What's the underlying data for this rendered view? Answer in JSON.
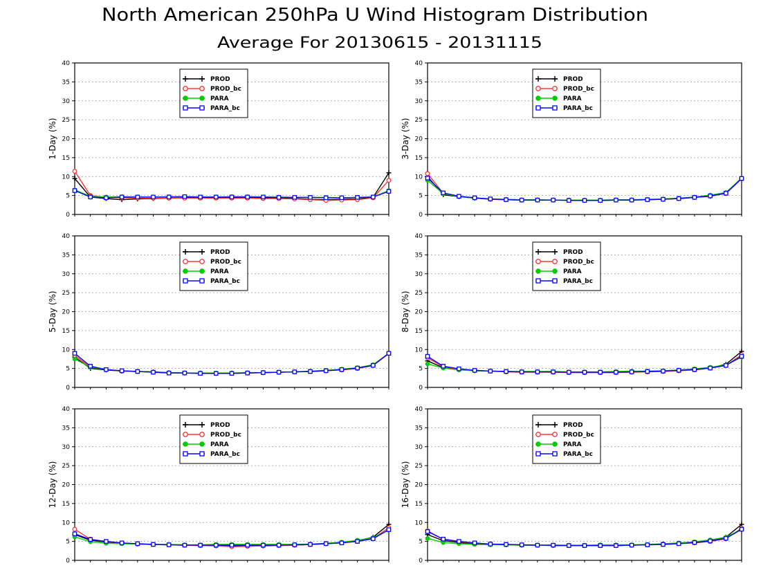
{
  "title": "North American 250hPa U Wind Histogram Distribution",
  "subtitle": "Average For 20130615 - 20131115",
  "series_styles": [
    {
      "name": "PROD",
      "color": "#000000",
      "marker": "plus"
    },
    {
      "name": "PROD_bc",
      "color": "#ff3333",
      "marker": "open-circle"
    },
    {
      "name": "PARA",
      "color": "#00cc00",
      "marker": "filled-circle"
    },
    {
      "name": "PARA_bc",
      "color": "#0000ff",
      "marker": "open-square"
    }
  ],
  "chart_data": [
    {
      "type": "line",
      "ylabel": "1-Day (%)",
      "ylim": [
        0,
        40
      ],
      "yticks": [
        0,
        5,
        10,
        15,
        20,
        25,
        30,
        35,
        40
      ],
      "grid": "y",
      "legend": "top-center",
      "x": [
        1,
        2,
        3,
        4,
        5,
        6,
        7,
        8,
        9,
        10,
        11,
        12,
        13,
        14,
        15,
        16,
        17,
        18,
        19,
        20,
        21
      ],
      "series": [
        {
          "name": "PROD",
          "values": [
            9.5,
            4.6,
            4.2,
            3.9,
            4.1,
            4.2,
            4.3,
            4.4,
            4.5,
            4.4,
            4.5,
            4.5,
            4.4,
            4.3,
            4.2,
            4.0,
            3.9,
            4.0,
            4.1,
            4.5,
            11.0
          ]
        },
        {
          "name": "PROD_bc",
          "values": [
            11.4,
            5.0,
            4.5,
            4.4,
            4.3,
            4.3,
            4.3,
            4.3,
            4.3,
            4.3,
            4.3,
            4.3,
            4.2,
            4.2,
            4.1,
            3.9,
            3.7,
            3.8,
            3.9,
            4.4,
            9.0
          ]
        },
        {
          "name": "PARA",
          "values": [
            6.5,
            4.8,
            4.6,
            4.7,
            4.6,
            4.6,
            4.7,
            4.7,
            4.6,
            4.6,
            4.7,
            4.7,
            4.6,
            4.6,
            4.5,
            4.5,
            4.5,
            4.4,
            4.5,
            4.6,
            6.3
          ]
        },
        {
          "name": "PARA_bc",
          "values": [
            6.3,
            4.6,
            4.4,
            4.6,
            4.6,
            4.6,
            4.6,
            4.7,
            4.6,
            4.6,
            4.6,
            4.6,
            4.6,
            4.5,
            4.5,
            4.5,
            4.4,
            4.4,
            4.5,
            4.6,
            6.1
          ]
        }
      ]
    },
    {
      "type": "line",
      "ylabel": "3-Day (%)",
      "ylim": [
        0,
        40
      ],
      "yticks": [
        0,
        5,
        10,
        15,
        20,
        25,
        30,
        35,
        40
      ],
      "grid": "y",
      "legend": "top-center",
      "x": [
        1,
        2,
        3,
        4,
        5,
        6,
        7,
        8,
        9,
        10,
        11,
        12,
        13,
        14,
        15,
        16,
        17,
        18,
        19,
        20,
        21
      ],
      "series": [
        {
          "name": "PROD",
          "values": [
            10.0,
            5.2,
            4.7,
            4.3,
            4.0,
            3.9,
            3.8,
            3.8,
            3.8,
            3.8,
            3.7,
            3.7,
            3.8,
            3.8,
            3.9,
            4.0,
            4.2,
            4.5,
            4.8,
            5.6,
            9.5
          ]
        },
        {
          "name": "PROD_bc",
          "values": [
            10.8,
            5.6,
            4.8,
            4.4,
            4.0,
            3.9,
            3.8,
            3.8,
            3.8,
            3.8,
            3.7,
            3.7,
            3.8,
            3.8,
            3.9,
            4.0,
            4.2,
            4.5,
            4.9,
            5.5,
            9.4
          ]
        },
        {
          "name": "PARA",
          "values": [
            9.0,
            5.5,
            4.7,
            4.3,
            4.1,
            4.0,
            3.9,
            3.9,
            3.8,
            3.8,
            3.8,
            3.8,
            3.9,
            3.9,
            4.0,
            4.1,
            4.3,
            4.6,
            5.1,
            5.8,
            9.6
          ]
        },
        {
          "name": "PARA_bc",
          "values": [
            9.6,
            5.7,
            4.8,
            4.4,
            4.1,
            3.9,
            3.8,
            3.8,
            3.8,
            3.7,
            3.7,
            3.7,
            3.8,
            3.8,
            3.9,
            4.0,
            4.2,
            4.5,
            4.9,
            5.6,
            9.5
          ]
        }
      ]
    },
    {
      "type": "line",
      "ylabel": "5-Day (%)",
      "ylim": [
        0,
        40
      ],
      "yticks": [
        0,
        5,
        10,
        15,
        20,
        25,
        30,
        35,
        40
      ],
      "grid": "y",
      "legend": "top-center",
      "x": [
        1,
        2,
        3,
        4,
        5,
        6,
        7,
        8,
        9,
        10,
        11,
        12,
        13,
        14,
        15,
        16,
        17,
        18,
        19,
        20,
        21
      ],
      "series": [
        {
          "name": "PROD",
          "values": [
            8.0,
            5.0,
            4.6,
            4.3,
            4.2,
            4.1,
            3.9,
            3.8,
            3.8,
            3.7,
            3.8,
            3.8,
            3.9,
            4.0,
            4.1,
            4.2,
            4.4,
            4.7,
            5.0,
            5.8,
            9.0
          ]
        },
        {
          "name": "PROD_bc",
          "values": [
            8.5,
            5.3,
            4.7,
            4.3,
            4.2,
            4.0,
            3.8,
            3.8,
            3.7,
            3.7,
            3.7,
            3.8,
            3.9,
            4.0,
            4.1,
            4.2,
            4.4,
            4.6,
            5.0,
            5.8,
            8.9
          ]
        },
        {
          "name": "PARA",
          "values": [
            7.5,
            5.3,
            4.7,
            4.4,
            4.2,
            4.0,
            3.9,
            3.8,
            3.8,
            3.8,
            3.8,
            3.9,
            3.9,
            4.0,
            4.1,
            4.3,
            4.5,
            4.8,
            5.2,
            6.0,
            9.0
          ]
        },
        {
          "name": "PARA_bc",
          "values": [
            9.0,
            5.6,
            4.7,
            4.4,
            4.2,
            4.0,
            3.8,
            3.8,
            3.7,
            3.7,
            3.7,
            3.8,
            3.9,
            4.0,
            4.1,
            4.2,
            4.4,
            4.7,
            5.1,
            5.8,
            9.0
          ]
        }
      ]
    },
    {
      "type": "line",
      "ylabel": "8-Day (%)",
      "ylim": [
        0,
        40
      ],
      "yticks": [
        0,
        5,
        10,
        15,
        20,
        25,
        30,
        35,
        40
      ],
      "grid": "y",
      "legend": "top-center",
      "x": [
        1,
        2,
        3,
        4,
        5,
        6,
        7,
        8,
        9,
        10,
        11,
        12,
        13,
        14,
        15,
        16,
        17,
        18,
        19,
        20,
        21
      ],
      "series": [
        {
          "name": "PROD",
          "values": [
            7.0,
            5.2,
            4.7,
            4.4,
            4.3,
            4.2,
            4.1,
            4.1,
            4.0,
            4.0,
            4.0,
            4.0,
            4.0,
            4.1,
            4.2,
            4.3,
            4.4,
            4.7,
            5.1,
            6.1,
            9.5
          ]
        },
        {
          "name": "PROD_bc",
          "values": [
            7.8,
            5.4,
            4.8,
            4.5,
            4.3,
            4.1,
            4.0,
            4.0,
            4.0,
            3.9,
            3.9,
            3.9,
            3.9,
            4.0,
            4.1,
            4.2,
            4.4,
            4.6,
            5.1,
            5.8,
            8.6
          ]
        },
        {
          "name": "PARA",
          "values": [
            6.2,
            5.1,
            4.6,
            4.4,
            4.3,
            4.2,
            4.2,
            4.2,
            4.2,
            4.1,
            4.1,
            4.1,
            4.2,
            4.3,
            4.3,
            4.4,
            4.6,
            4.9,
            5.3,
            5.9,
            8.0
          ]
        },
        {
          "name": "PARA_bc",
          "values": [
            8.2,
            5.6,
            4.9,
            4.5,
            4.3,
            4.2,
            4.1,
            4.1,
            4.1,
            4.0,
            4.0,
            4.0,
            4.0,
            4.1,
            4.2,
            4.3,
            4.5,
            4.7,
            5.1,
            5.8,
            8.2
          ]
        }
      ]
    },
    {
      "type": "line",
      "ylabel": "12-Day (%)",
      "ylim": [
        0,
        40
      ],
      "yticks": [
        0,
        5,
        10,
        15,
        20,
        25,
        30,
        35,
        40
      ],
      "grid": "y",
      "legend": "top-center",
      "x": [
        1,
        2,
        3,
        4,
        5,
        6,
        7,
        8,
        9,
        10,
        11,
        12,
        13,
        14,
        15,
        16,
        17,
        18,
        19,
        20,
        21
      ],
      "series": [
        {
          "name": "PROD",
          "values": [
            6.8,
            5.3,
            4.8,
            4.5,
            4.3,
            4.2,
            4.1,
            4.0,
            3.9,
            3.9,
            3.9,
            3.8,
            3.8,
            3.9,
            4.0,
            4.2,
            4.4,
            4.7,
            5.2,
            6.1,
            9.5
          ]
        },
        {
          "name": "PROD_bc",
          "values": [
            8.2,
            5.6,
            4.9,
            4.6,
            4.3,
            4.2,
            4.1,
            4.0,
            3.9,
            3.8,
            3.6,
            3.7,
            3.8,
            3.9,
            4.0,
            4.2,
            4.4,
            4.6,
            5.0,
            5.8,
            8.6
          ]
        },
        {
          "name": "PARA",
          "values": [
            6.2,
            4.9,
            4.5,
            4.4,
            4.3,
            4.2,
            4.2,
            4.1,
            4.1,
            4.2,
            4.2,
            4.2,
            4.2,
            4.2,
            4.2,
            4.3,
            4.5,
            4.8,
            5.3,
            6.0,
            8.0
          ]
        },
        {
          "name": "PARA_bc",
          "values": [
            7.0,
            5.5,
            5.0,
            4.6,
            4.4,
            4.2,
            4.1,
            4.0,
            4.0,
            4.0,
            4.0,
            4.0,
            4.0,
            4.0,
            4.1,
            4.2,
            4.4,
            4.6,
            5.0,
            5.7,
            8.1
          ]
        }
      ]
    },
    {
      "type": "line",
      "ylabel": "16-Day (%)",
      "ylim": [
        0,
        40
      ],
      "yticks": [
        0,
        5,
        10,
        15,
        20,
        25,
        30,
        35,
        40
      ],
      "grid": "y",
      "legend": "top-center",
      "x": [
        1,
        2,
        3,
        4,
        5,
        6,
        7,
        8,
        9,
        10,
        11,
        12,
        13,
        14,
        15,
        16,
        17,
        18,
        19,
        20,
        21
      ],
      "series": [
        {
          "name": "PROD",
          "values": [
            6.8,
            5.2,
            4.7,
            4.4,
            4.2,
            4.1,
            4.0,
            4.0,
            3.9,
            3.9,
            3.9,
            3.9,
            3.9,
            4.0,
            4.1,
            4.3,
            4.5,
            4.8,
            5.3,
            6.1,
            9.5
          ]
        },
        {
          "name": "PROD_bc",
          "values": [
            7.8,
            5.5,
            4.9,
            4.5,
            4.3,
            4.2,
            4.1,
            4.0,
            4.0,
            3.9,
            3.9,
            3.9,
            3.9,
            4.0,
            4.1,
            4.2,
            4.4,
            4.6,
            5.0,
            5.7,
            8.5
          ]
        },
        {
          "name": "PARA",
          "values": [
            5.8,
            4.7,
            4.4,
            4.2,
            4.1,
            4.1,
            4.0,
            4.0,
            4.0,
            4.0,
            4.0,
            4.1,
            4.1,
            4.1,
            4.2,
            4.4,
            4.6,
            4.9,
            5.4,
            6.1,
            8.2
          ]
        },
        {
          "name": "PARA_bc",
          "values": [
            7.6,
            5.6,
            5.0,
            4.6,
            4.3,
            4.2,
            4.1,
            4.0,
            4.0,
            3.9,
            3.9,
            3.9,
            3.9,
            4.0,
            4.1,
            4.2,
            4.4,
            4.7,
            5.1,
            5.8,
            8.2
          ]
        }
      ]
    }
  ]
}
